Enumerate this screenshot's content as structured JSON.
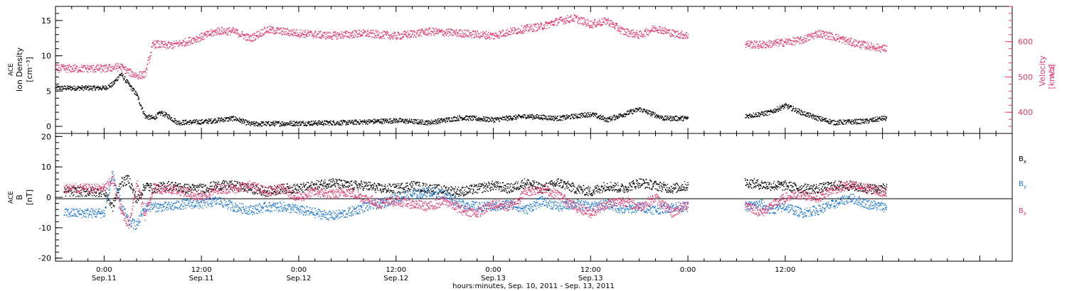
{
  "chart_data": [
    {
      "type": "scatter",
      "panel": "top",
      "left_axis": {
        "label_lines": [
          "ACE",
          "Ion Density",
          "[cm⁻³]"
        ],
        "ylim": [
          -1,
          17
        ],
        "ticks": [
          0,
          5,
          10,
          15
        ],
        "tick_labels": [
          "0",
          "5",
          "10",
          "15"
        ]
      },
      "right_axis": {
        "label_lines": [
          "ACE",
          "Velocity",
          "[km/s]"
        ],
        "ylim": [
          340,
          700
        ],
        "ticks": [
          400,
          500,
          600
        ],
        "tick_labels": [
          "400",
          "500",
          "600"
        ],
        "color": "#e8336b"
      },
      "series": [
        {
          "axis": "left",
          "color": "#000000",
          "gaps": [
            [
              72,
              79
            ]
          ],
          "knots": [
            [
              0,
              5.5
            ],
            [
              1,
              6
            ],
            [
              2,
              7.5
            ],
            [
              3,
              6
            ],
            [
              4,
              4.5
            ],
            [
              5,
              1.5
            ],
            [
              6,
              1.2
            ],
            [
              7,
              2.0
            ],
            [
              8,
              1.4
            ],
            [
              9,
              0.6
            ],
            [
              12,
              0.7
            ],
            [
              16,
              1.2
            ],
            [
              18,
              0.4
            ],
            [
              24,
              0.5
            ],
            [
              30,
              0.6
            ],
            [
              36,
              0.9
            ],
            [
              40,
              0.6
            ],
            [
              44,
              1.3
            ],
            [
              48,
              1.0
            ],
            [
              52,
              1.5
            ],
            [
              56,
              1.2
            ],
            [
              60,
              1.8
            ],
            [
              62,
              1.0
            ],
            [
              66,
              2.5
            ],
            [
              69,
              1.2
            ],
            [
              72,
              1.2
            ],
            [
              79,
              1.5
            ],
            [
              82,
              2.0
            ],
            [
              84,
              3.0
            ],
            [
              86,
              2.0
            ],
            [
              88,
              1.2
            ],
            [
              90,
              0.6
            ],
            [
              94,
              0.8
            ],
            [
              96,
              1.2
            ]
          ]
        },
        {
          "axis": "right",
          "color": "#e8336b",
          "gaps": [
            [
              72,
              79
            ]
          ],
          "knots": [
            [
              0,
              525
            ],
            [
              2,
              530
            ],
            [
              3,
              515
            ],
            [
              4,
              505
            ],
            [
              5,
              508
            ],
            [
              6,
              595
            ],
            [
              8,
              590
            ],
            [
              10,
              600
            ],
            [
              12,
              615
            ],
            [
              14,
              632
            ],
            [
              16,
              630
            ],
            [
              18,
              610
            ],
            [
              20,
              635
            ],
            [
              24,
              625
            ],
            [
              28,
              618
            ],
            [
              32,
              625
            ],
            [
              36,
              617
            ],
            [
              40,
              630
            ],
            [
              44,
              625
            ],
            [
              48,
              618
            ],
            [
              50,
              630
            ],
            [
              52,
              638
            ],
            [
              54,
              645
            ],
            [
              56,
              660
            ],
            [
              58,
              668
            ],
            [
              60,
              650
            ],
            [
              62,
              660
            ],
            [
              64,
              630
            ],
            [
              66,
              620
            ],
            [
              68,
              640
            ],
            [
              70,
              625
            ],
            [
              72,
              618
            ],
            [
              79,
              595
            ],
            [
              81,
              592
            ],
            [
              84,
              600
            ],
            [
              86,
              605
            ],
            [
              88,
              625
            ],
            [
              90,
              615
            ],
            [
              92,
              600
            ],
            [
              94,
              590
            ],
            [
              96,
              582
            ]
          ]
        }
      ]
    },
    {
      "type": "scatter",
      "panel": "bottom",
      "left_axis": {
        "label_lines": [
          "ACE",
          "B",
          "[nT]"
        ],
        "ylim": [
          -21,
          21
        ],
        "ticks": [
          -20,
          -10,
          0,
          10,
          20
        ],
        "tick_labels": [
          "-20",
          "-10",
          "0",
          "10",
          "20"
        ]
      },
      "xaxis": {
        "xlim": [
          -6,
          112
        ],
        "ticks": [
          0,
          12,
          24,
          36,
          48,
          60,
          72,
          84
        ],
        "tick_time_labels": [
          "0:00",
          "12:00",
          "0:00",
          "12:00",
          "0:00",
          "12:00",
          "0:00",
          "12:00"
        ],
        "tick_date_labels": [
          "Sep.11",
          "Sep.11",
          "Sep.12",
          "Sep.12",
          "Sep.13",
          "Sep.13",
          "",
          ""
        ],
        "label": "hours:minutes, Sep. 10, 2011 - Sep. 13, 2011"
      },
      "series": [
        {
          "name": "Bx",
          "color": "#000000",
          "gaps": [
            [
              72,
              79
            ]
          ],
          "knots": [
            [
              0,
              2
            ],
            [
              1,
              -3
            ],
            [
              2,
              5
            ],
            [
              3,
              6
            ],
            [
              4,
              -1
            ],
            [
              5,
              4
            ],
            [
              6,
              3
            ],
            [
              8,
              4
            ],
            [
              10,
              3
            ],
            [
              12,
              3
            ],
            [
              14,
              4
            ],
            [
              16,
              4
            ],
            [
              18,
              3
            ],
            [
              20,
              2
            ],
            [
              22,
              3
            ],
            [
              24,
              3
            ],
            [
              26,
              4
            ],
            [
              28,
              5
            ],
            [
              30,
              4
            ],
            [
              32,
              4
            ],
            [
              34,
              3
            ],
            [
              36,
              3
            ],
            [
              38,
              4
            ],
            [
              40,
              3
            ],
            [
              44,
              2
            ],
            [
              46,
              3
            ],
            [
              48,
              4
            ],
            [
              50,
              3
            ],
            [
              52,
              5
            ],
            [
              54,
              3
            ],
            [
              56,
              5
            ],
            [
              58,
              3
            ],
            [
              60,
              2
            ],
            [
              62,
              4
            ],
            [
              64,
              3
            ],
            [
              66,
              5
            ],
            [
              68,
              4
            ],
            [
              70,
              3
            ],
            [
              72,
              4
            ],
            [
              79,
              5
            ],
            [
              82,
              4
            ],
            [
              84,
              4
            ],
            [
              86,
              3
            ],
            [
              88,
              3
            ],
            [
              90,
              4
            ],
            [
              92,
              4
            ],
            [
              94,
              3
            ],
            [
              96,
              3
            ]
          ]
        },
        {
          "name": "By",
          "color": "#1f7ad6",
          "gaps": [
            [
              72,
              79
            ]
          ],
          "knots": [
            [
              0,
              -5
            ],
            [
              1,
              8
            ],
            [
              2,
              -2
            ],
            [
              3,
              -8
            ],
            [
              4,
              -9
            ],
            [
              5,
              -3
            ],
            [
              6,
              -3
            ],
            [
              8,
              -3
            ],
            [
              10,
              -2
            ],
            [
              12,
              -2
            ],
            [
              14,
              -1
            ],
            [
              16,
              -3
            ],
            [
              18,
              -4
            ],
            [
              20,
              -3
            ],
            [
              22,
              -3
            ],
            [
              24,
              -4
            ],
            [
              26,
              -5
            ],
            [
              28,
              -6
            ],
            [
              30,
              -5
            ],
            [
              32,
              -3
            ],
            [
              34,
              -2
            ],
            [
              36,
              0
            ],
            [
              38,
              1
            ],
            [
              40,
              2
            ],
            [
              42,
              1
            ],
            [
              44,
              -2
            ],
            [
              46,
              -3
            ],
            [
              48,
              -3
            ],
            [
              50,
              -2
            ],
            [
              52,
              -4
            ],
            [
              54,
              -1
            ],
            [
              56,
              -3
            ],
            [
              58,
              -2
            ],
            [
              60,
              -3
            ],
            [
              62,
              -2
            ],
            [
              64,
              -4
            ],
            [
              66,
              -3
            ],
            [
              68,
              -4
            ],
            [
              70,
              -3
            ],
            [
              72,
              -3
            ],
            [
              79,
              -3
            ],
            [
              81,
              -2
            ],
            [
              82,
              -4
            ],
            [
              84,
              -3
            ],
            [
              86,
              -5
            ],
            [
              88,
              -4
            ],
            [
              90,
              -2
            ],
            [
              92,
              0
            ],
            [
              94,
              -2
            ],
            [
              96,
              -3
            ]
          ]
        },
        {
          "name": "Bz",
          "color": "#e8336b",
          "gaps": [
            [
              72,
              79
            ]
          ],
          "knots": [
            [
              0,
              3
            ],
            [
              1,
              6
            ],
            [
              2,
              -4
            ],
            [
              3,
              -9
            ],
            [
              4,
              5
            ],
            [
              5,
              -6
            ],
            [
              6,
              3
            ],
            [
              8,
              3
            ],
            [
              10,
              2
            ],
            [
              12,
              0
            ],
            [
              14,
              3
            ],
            [
              16,
              3
            ],
            [
              18,
              4
            ],
            [
              20,
              2
            ],
            [
              22,
              3
            ],
            [
              24,
              0
            ],
            [
              26,
              2
            ],
            [
              28,
              1
            ],
            [
              30,
              2
            ],
            [
              32,
              0
            ],
            [
              34,
              -2
            ],
            [
              36,
              -1
            ],
            [
              38,
              -2
            ],
            [
              40,
              -3
            ],
            [
              42,
              -1
            ],
            [
              44,
              -4
            ],
            [
              46,
              -5
            ],
            [
              48,
              -2
            ],
            [
              50,
              -3
            ],
            [
              52,
              2
            ],
            [
              54,
              3
            ],
            [
              56,
              1
            ],
            [
              58,
              -3
            ],
            [
              60,
              -5
            ],
            [
              62,
              -2
            ],
            [
              64,
              -1
            ],
            [
              66,
              -3
            ],
            [
              68,
              0
            ],
            [
              70,
              -5
            ],
            [
              72,
              -2
            ],
            [
              79,
              -2
            ],
            [
              81,
              -5
            ],
            [
              82,
              -3
            ],
            [
              84,
              0
            ],
            [
              86,
              1
            ],
            [
              88,
              0
            ],
            [
              90,
              3
            ],
            [
              92,
              4
            ],
            [
              94,
              3
            ],
            [
              96,
              2
            ]
          ]
        }
      ],
      "legend": [
        {
          "label": "B",
          "sub": "x",
          "color": "#000000"
        },
        {
          "label": "B",
          "sub": "y",
          "color": "#1f7ad6"
        },
        {
          "label": "B",
          "sub": "z",
          "color": "#e8336b"
        }
      ]
    }
  ]
}
